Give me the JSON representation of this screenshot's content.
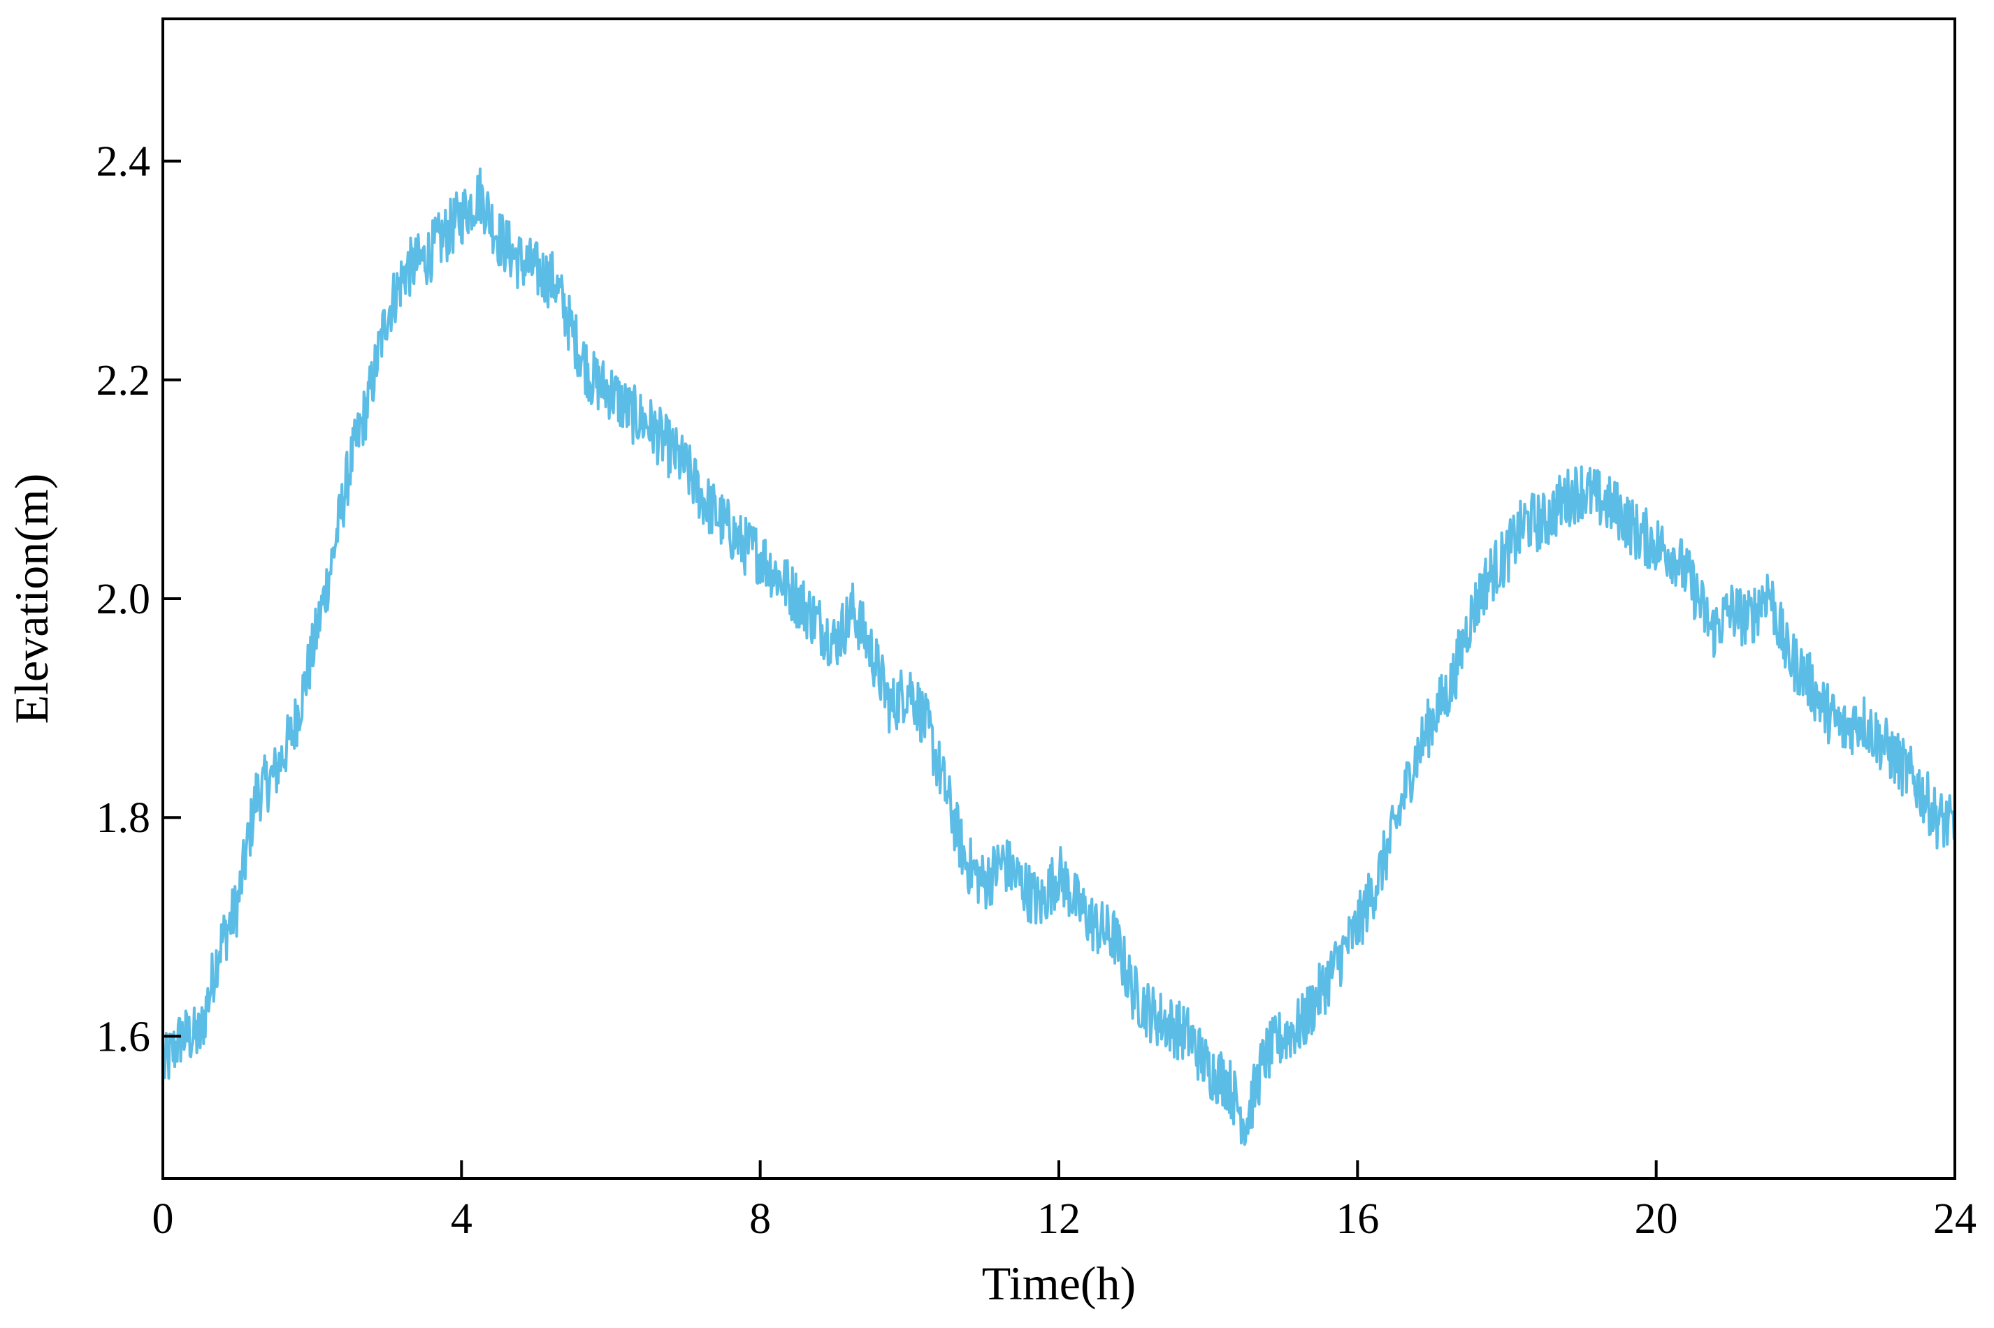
{
  "chart_data": {
    "type": "line",
    "title": "",
    "xlabel": "Time(h)",
    "ylabel": "Elevation(m)",
    "xlim": [
      0,
      24
    ],
    "ylim": [
      1.47,
      2.53
    ],
    "x_ticks": [
      0,
      4,
      8,
      12,
      16,
      20,
      24
    ],
    "x_tick_labels": [
      "0",
      "4",
      "8",
      "12",
      "16",
      "20",
      "24"
    ],
    "y_ticks": [
      1.6,
      1.8,
      2.0,
      2.2,
      2.4
    ],
    "y_tick_labels": [
      "1.6",
      "1.8",
      "2.0",
      "2.2",
      "2.4"
    ],
    "grid": false,
    "legend": "none",
    "color": "#5bbde6",
    "series": [
      {
        "x": [
          0,
          0.25,
          0.5,
          0.75,
          1.0,
          1.25,
          1.5,
          1.75,
          2.0,
          2.25,
          2.5,
          2.75,
          3.0,
          3.25,
          3.5,
          3.75,
          4.0,
          4.25,
          4.5,
          4.75,
          5.0,
          5.25,
          5.5,
          5.75,
          6.0,
          6.25,
          6.5,
          6.75,
          7.0,
          7.25,
          7.5,
          7.75,
          8.0,
          8.25,
          8.5,
          8.75,
          9.0,
          9.25,
          9.5,
          9.75,
          10.0,
          10.25,
          10.5,
          10.75,
          11.0,
          11.25,
          11.5,
          11.75,
          12.0,
          12.25,
          12.5,
          12.75,
          13.0,
          13.25,
          13.5,
          13.75,
          14.0,
          14.25,
          14.5,
          14.75,
          15.0,
          15.25,
          15.5,
          15.75,
          16.0,
          16.25,
          16.5,
          16.75,
          17.0,
          17.25,
          17.5,
          17.75,
          18.0,
          18.25,
          18.5,
          18.75,
          19.0,
          19.25,
          19.5,
          19.75,
          20.0,
          20.25,
          20.5,
          20.75,
          21.0,
          21.25,
          21.5,
          21.75,
          22.0,
          22.25,
          22.5,
          22.75,
          23.0,
          23.25,
          23.5,
          23.75,
          24.0
        ],
        "values": [
          1.57,
          1.6,
          1.6,
          1.68,
          1.72,
          1.82,
          1.84,
          1.88,
          1.95,
          2.03,
          2.12,
          2.18,
          2.26,
          2.3,
          2.31,
          2.33,
          2.35,
          2.37,
          2.33,
          2.31,
          2.3,
          2.29,
          2.24,
          2.2,
          2.19,
          2.17,
          2.16,
          2.14,
          2.12,
          2.09,
          2.07,
          2.05,
          2.04,
          2.02,
          2.0,
          1.98,
          1.96,
          1.99,
          1.95,
          1.9,
          1.92,
          1.88,
          1.82,
          1.76,
          1.74,
          1.76,
          1.74,
          1.72,
          1.75,
          1.72,
          1.7,
          1.69,
          1.64,
          1.62,
          1.61,
          1.6,
          1.57,
          1.56,
          1.52,
          1.58,
          1.6,
          1.61,
          1.64,
          1.67,
          1.7,
          1.74,
          1.79,
          1.85,
          1.89,
          1.92,
          1.98,
          2.02,
          2.04,
          2.07,
          2.07,
          2.09,
          2.1,
          2.09,
          2.08,
          2.06,
          2.05,
          2.04,
          2.01,
          1.97,
          1.99,
          1.98,
          2.01,
          1.95,
          1.93,
          1.9,
          1.88,
          1.89,
          1.87,
          1.85,
          1.83,
          1.8,
          1.79
        ]
      }
    ]
  }
}
